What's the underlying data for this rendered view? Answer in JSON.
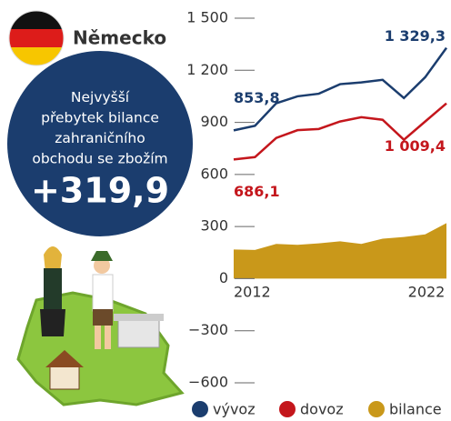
{
  "chart_data": {
    "type": "line",
    "title": "Německo",
    "annotation": "Nejvyšší přebytek bilance zahraničního obchodu se zbožím",
    "x": [
      2012,
      2013,
      2014,
      2015,
      2016,
      2017,
      2018,
      2019,
      2020,
      2021,
      2022
    ],
    "xlim": [
      2012,
      2022
    ],
    "xticks": [
      2012,
      2022
    ],
    "ylim": [
      -600,
      1500
    ],
    "yticks": [
      {
        "value": 1500,
        "label": "1 500"
      },
      {
        "value": 1200,
        "label": "1 200"
      },
      900,
      600,
      300,
      0,
      {
        "value": -300,
        "label": "−300"
      },
      {
        "value": -600,
        "label": "−600"
      }
    ],
    "series": [
      {
        "name": "vývoz",
        "color": "#1b3d6e",
        "values": [
          853.8,
          880,
          1010,
          1050,
          1065,
          1120,
          1130,
          1145,
          1040,
          1160,
          1329.3
        ],
        "value_labels": [
          "853,8",
          null,
          null,
          null,
          null,
          null,
          null,
          null,
          null,
          null,
          "1 329,3"
        ]
      },
      {
        "name": "dovoz",
        "color": "#c4161c",
        "values": [
          686.1,
          700,
          810,
          855,
          862,
          905,
          930,
          915,
          800,
          905,
          1009.4
        ],
        "value_labels": [
          "686,1",
          null,
          null,
          null,
          null,
          null,
          null,
          null,
          null,
          null,
          "1 009,4"
        ]
      },
      {
        "name": "bilance",
        "color": "#c9981a",
        "kind": "area",
        "values": [
          167.7,
          165,
          200,
          195,
          203,
          215,
          200,
          230,
          240,
          255,
          319.9
        ],
        "value_labels": [
          null,
          null,
          null,
          null,
          null,
          null,
          null,
          null,
          null,
          null,
          "+319,9"
        ]
      }
    ]
  }
}
